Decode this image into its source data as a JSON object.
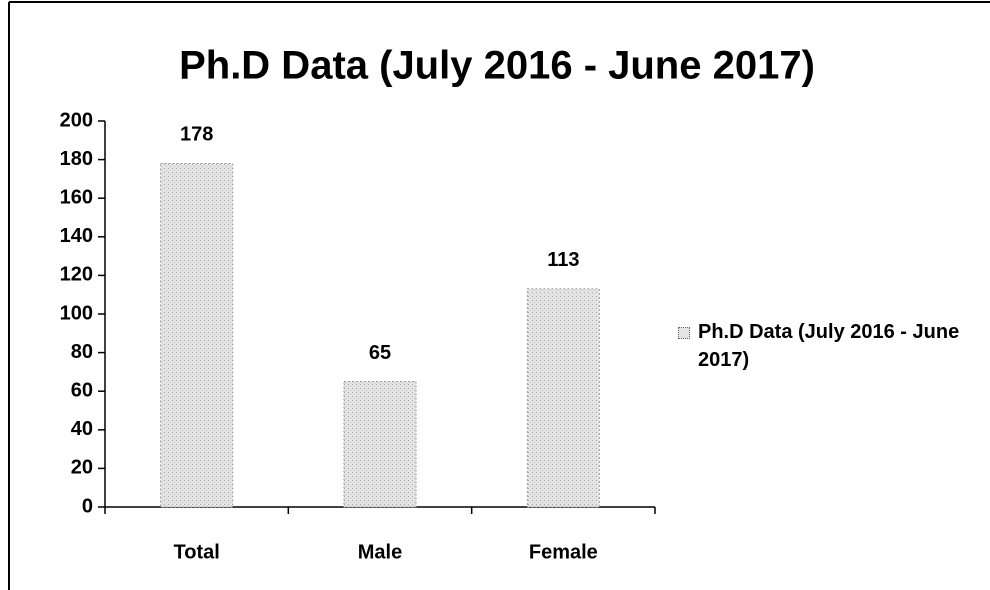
{
  "chart_data": {
    "type": "bar",
    "title": "Ph.D Data  (July 2016 - June 2017)",
    "categories": [
      "Total",
      "Male",
      "Female"
    ],
    "series": [
      {
        "name": "Ph.D Data  (July 2016 - June 2017)",
        "color": "#e4e4e4",
        "values": [
          178,
          65,
          113
        ]
      }
    ],
    "ylim": [
      0,
      200
    ],
    "yticks": [
      0,
      20,
      40,
      60,
      80,
      100,
      120,
      140,
      160,
      180,
      200
    ],
    "grid": false,
    "legend": "right",
    "data_labels": true
  }
}
